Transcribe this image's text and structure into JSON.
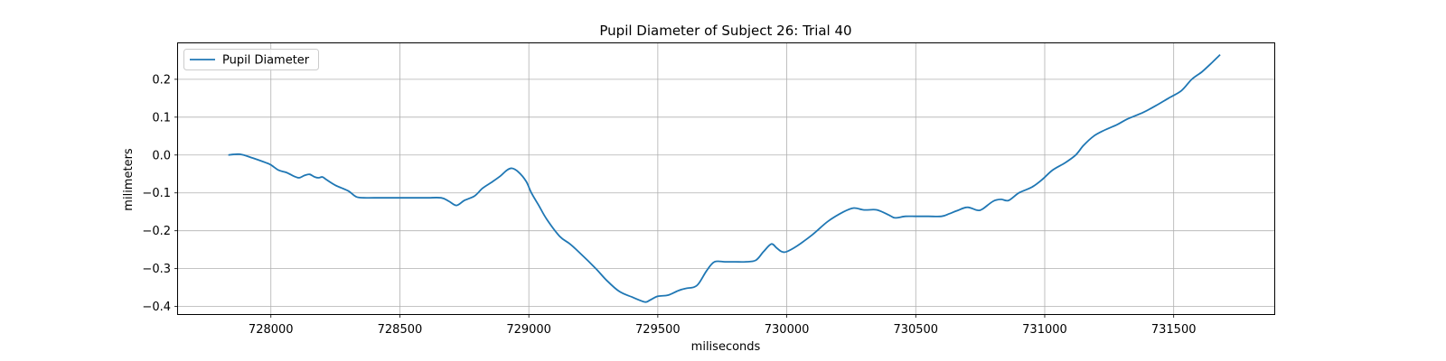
{
  "chart_data": {
    "type": "line",
    "title": "Pupil Diameter of Subject 26: Trial 40",
    "xlabel": "miliseconds",
    "ylabel": "milimeters",
    "xlim": [
      727640,
      731890
    ],
    "ylim": [
      -0.42,
      0.295
    ],
    "xticks": [
      728000,
      728500,
      729000,
      729500,
      730000,
      730500,
      731000,
      731500
    ],
    "yticks": [
      -0.4,
      -0.3,
      -0.2,
      -0.1,
      0.0,
      0.1,
      0.2
    ],
    "ytick_labels": [
      "−0.4",
      "−0.3",
      "−0.2",
      "−0.1",
      "0.0",
      "0.1",
      "0.2"
    ],
    "grid": true,
    "legend_position": "upper-left",
    "series": [
      {
        "name": "Pupil Diameter",
        "color": "#1f77b4",
        "x": [
          727835,
          727880,
          727930,
          727980,
          728000,
          728030,
          728060,
          728090,
          728110,
          728130,
          728150,
          728170,
          728185,
          728200,
          728215,
          728250,
          728300,
          728330,
          728360,
          728400,
          728500,
          728600,
          728660,
          728690,
          728720,
          728750,
          728790,
          728820,
          728860,
          728890,
          728915,
          728935,
          728960,
          728990,
          729010,
          729040,
          729070,
          729120,
          729160,
          729200,
          729260,
          729300,
          729350,
          729400,
          729450,
          729470,
          729500,
          729540,
          729580,
          729610,
          729640,
          729660,
          729690,
          729720,
          729760,
          729800,
          729840,
          729880,
          729910,
          729940,
          729960,
          729980,
          730000,
          730040,
          730100,
          730160,
          730220,
          730260,
          730300,
          730350,
          730400,
          730420,
          730460,
          730500,
          730550,
          730600,
          730630,
          730660,
          730700,
          730740,
          730760,
          730800,
          730830,
          730860,
          730900,
          730950,
          730990,
          731030,
          731080,
          731120,
          731150,
          731190,
          731230,
          731280,
          731320,
          731380,
          731430,
          731480,
          731530,
          731570,
          731610,
          731650,
          731680
        ],
        "y": [
          0.0,
          0.002,
          -0.008,
          -0.02,
          -0.026,
          -0.04,
          -0.046,
          -0.056,
          -0.06,
          -0.054,
          -0.051,
          -0.058,
          -0.06,
          -0.058,
          -0.065,
          -0.08,
          -0.095,
          -0.11,
          -0.113,
          -0.113,
          -0.113,
          -0.113,
          -0.113,
          -0.122,
          -0.133,
          -0.12,
          -0.108,
          -0.088,
          -0.07,
          -0.055,
          -0.04,
          -0.035,
          -0.045,
          -0.07,
          -0.1,
          -0.135,
          -0.17,
          -0.215,
          -0.235,
          -0.26,
          -0.3,
          -0.33,
          -0.36,
          -0.375,
          -0.388,
          -0.383,
          -0.373,
          -0.37,
          -0.358,
          -0.352,
          -0.349,
          -0.338,
          -0.305,
          -0.282,
          -0.282,
          -0.282,
          -0.282,
          -0.278,
          -0.255,
          -0.235,
          -0.245,
          -0.255,
          -0.255,
          -0.24,
          -0.21,
          -0.175,
          -0.15,
          -0.14,
          -0.145,
          -0.145,
          -0.16,
          -0.166,
          -0.162,
          -0.162,
          -0.162,
          -0.162,
          -0.155,
          -0.147,
          -0.138,
          -0.146,
          -0.142,
          -0.122,
          -0.117,
          -0.12,
          -0.1,
          -0.085,
          -0.065,
          -0.04,
          -0.02,
          0.0,
          0.025,
          0.05,
          0.065,
          0.08,
          0.095,
          0.112,
          0.13,
          0.15,
          0.17,
          0.2,
          0.22,
          0.245,
          0.265
        ]
      }
    ]
  }
}
